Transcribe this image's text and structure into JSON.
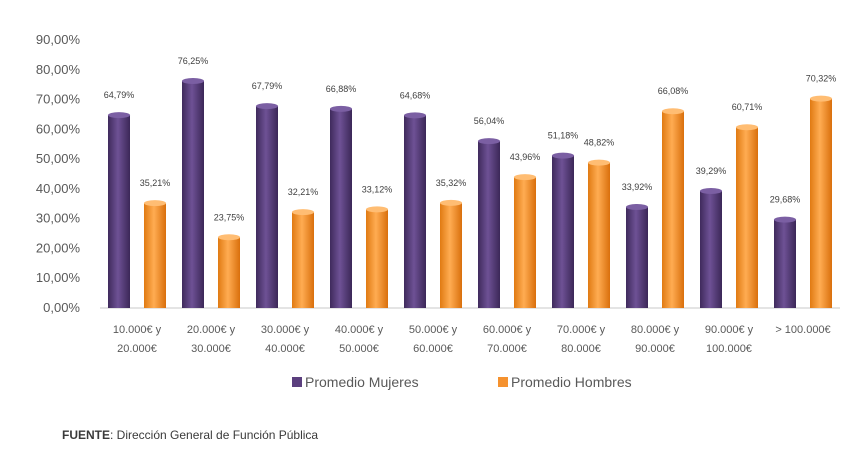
{
  "chart_data": {
    "type": "bar",
    "categories": [
      [
        "10.000€ y",
        "20.000€"
      ],
      [
        "20.000€ y",
        "30.000€"
      ],
      [
        "30.000€ y",
        "40.000€"
      ],
      [
        "40.000€ y",
        "50.000€"
      ],
      [
        "50.000€ y",
        "60.000€"
      ],
      [
        "60.000€ y",
        "70.000€"
      ],
      [
        "70.000€ y",
        "80.000€"
      ],
      [
        "80.000€ y",
        "90.000€"
      ],
      [
        "90.000€ y",
        "100.000€"
      ],
      [
        "> 100.000€"
      ]
    ],
    "series": [
      {
        "name": "Promedio Mujeres",
        "color": "#5b3f7e",
        "values": [
          64.79,
          76.25,
          67.79,
          66.88,
          64.68,
          56.04,
          51.18,
          33.92,
          39.29,
          29.68
        ],
        "labels": [
          "64,79%",
          "76,25%",
          "67,79%",
          "66,88%",
          "64,68%",
          "56,04%",
          "51,18%",
          "33,92%",
          "39,29%",
          "29,68%"
        ]
      },
      {
        "name": "Promedio Hombres",
        "color": "#f5922f",
        "values": [
          35.21,
          23.75,
          32.21,
          33.12,
          35.32,
          43.96,
          48.82,
          66.08,
          60.71,
          70.32
        ],
        "labels": [
          "35,21%",
          "23,75%",
          "32,21%",
          "33,12%",
          "35,32%",
          "43,96%",
          "48,82%",
          "66,08%",
          "60,71%",
          "70,32%"
        ]
      }
    ],
    "yticks": [
      "0,00%",
      "10,00%",
      "20,00%",
      "30,00%",
      "40,00%",
      "50,00%",
      "60,00%",
      "70,00%",
      "80,00%",
      "90,00%"
    ],
    "ylim": [
      0,
      90
    ],
    "grid": false,
    "legend_position": "bottom"
  },
  "source": {
    "label": "FUENTE",
    "text": ": Dirección General de Función Pública"
  }
}
